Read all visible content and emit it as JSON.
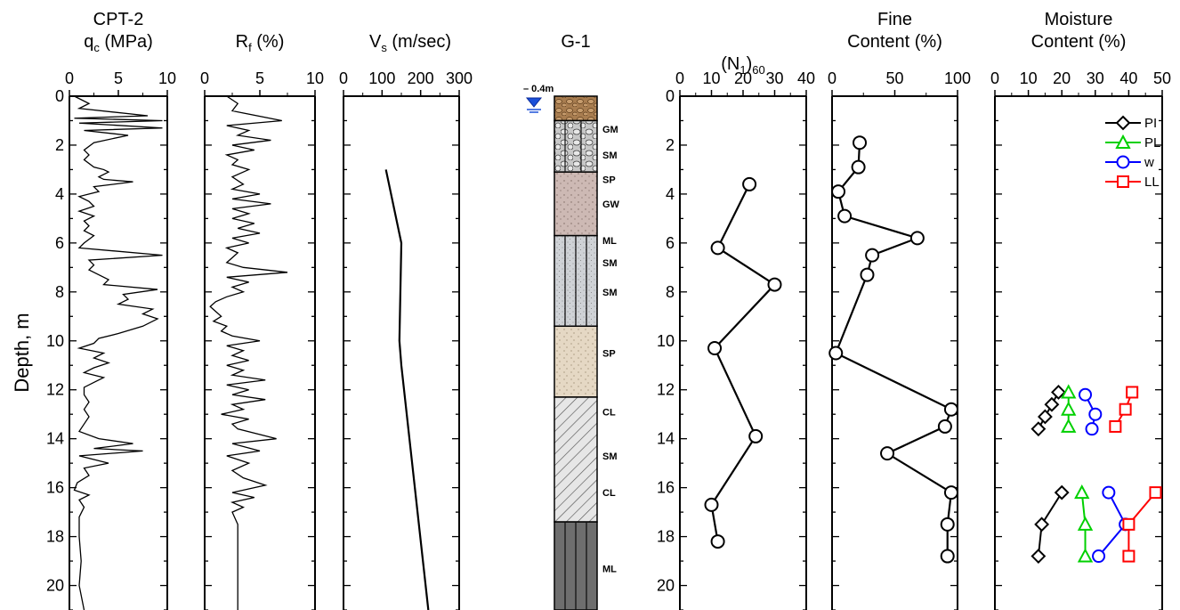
{
  "chart_data": {
    "type": "line",
    "y_axis": {
      "label": "Depth, m",
      "range": [
        0,
        21
      ],
      "ticks": [
        0,
        2,
        4,
        6,
        8,
        10,
        12,
        14,
        16,
        18,
        20
      ],
      "inverted": true
    },
    "panels": [
      {
        "id": "qc",
        "title_lines": [
          "CPT-2",
          "q_c (MPa)"
        ],
        "xlim": [
          0,
          10
        ],
        "xticks": [
          0,
          5,
          10
        ],
        "series": [
          {
            "values_desc": "CPT tip resistance",
            "x": [
              0.5,
              2.0,
              1.0,
              8.0,
              0.5,
              9.5,
              1.0,
              9.5,
              1.5,
              6.0,
              2.5,
              1.5,
              2.0,
              1.5,
              2.5,
              3.5,
              4.0,
              3.0,
              3.5,
              6.5,
              2.5,
              3.0,
              1.0,
              2.0,
              2.5,
              1.0,
              2.5,
              1.5,
              2.0,
              1.5,
              2.5,
              1.5,
              1.0,
              9.5,
              2.0,
              2.5,
              2.0,
              3.0,
              4.0,
              3.5,
              9.0,
              5.5,
              6.0,
              5.0,
              8.5,
              7.5,
              9.0,
              7.5,
              5.0,
              3.0,
              2.5,
              1.0,
              3.5,
              2.5,
              4.0,
              2.5,
              1.5,
              3.5,
              2.5,
              1.5,
              1.5,
              2.0,
              1.5,
              2.0,
              1.5,
              1.0,
              3.0,
              6.5,
              2.5,
              7.5,
              1.0,
              4.0,
              1.5,
              2.0,
              0.8,
              0.5,
              2.0,
              1.0,
              1.5,
              1.0,
              1.0,
              1.2,
              1.0,
              1.5
            ],
            "depth": [
              0,
              0.3,
              0.5,
              0.8,
              0.9,
              1.0,
              1.1,
              1.3,
              1.4,
              1.6,
              1.9,
              2.2,
              2.4,
              2.6,
              2.9,
              3.0,
              3.1,
              3.3,
              3.4,
              3.5,
              3.7,
              3.9,
              4.1,
              4.3,
              4.5,
              4.7,
              4.9,
              5.1,
              5.3,
              5.5,
              5.7,
              6.0,
              6.2,
              6.5,
              6.7,
              6.9,
              7.1,
              7.3,
              7.5,
              7.7,
              7.9,
              8.1,
              8.3,
              8.5,
              8.7,
              8.9,
              9.1,
              9.4,
              9.7,
              9.9,
              10.1,
              10.3,
              10.5,
              10.7,
              10.9,
              11.1,
              11.3,
              11.5,
              11.7,
              11.9,
              12.2,
              12.5,
              12.8,
              13.1,
              13.4,
              13.7,
              14.0,
              14.2,
              14.4,
              14.5,
              14.7,
              15.0,
              15.2,
              15.5,
              15.8,
              16.1,
              16.3,
              16.5,
              16.8,
              17.2,
              18.0,
              19.0,
              20.0,
              21.0
            ]
          }
        ]
      },
      {
        "id": "rf",
        "title_lines": [
          "R_f (%)"
        ],
        "xlim": [
          0,
          10
        ],
        "xticks": [
          0,
          5,
          10
        ],
        "series": [
          {
            "values_desc": "friction ratio",
            "x": [
              2.0,
              3.0,
              2.5,
              7.0,
              2.0,
              4.0,
              3.0,
              6.0,
              2.5,
              4.5,
              2.0,
              3.0,
              2.5,
              4.0,
              2.5,
              3.5,
              2.5,
              5.0,
              2.5,
              6.0,
              2.5,
              4.0,
              2.5,
              4.5,
              3.0,
              5.0,
              2.5,
              4.0,
              2.0,
              3.0,
              2.5,
              2.0,
              3.5,
              7.5,
              2.0,
              4.0,
              2.5,
              3.5,
              2.0,
              1.0,
              0.5,
              1.0,
              1.5,
              0.8,
              2.0,
              1.5,
              2.5,
              5.0,
              2.0,
              3.5,
              2.5,
              4.0,
              2.0,
              3.5,
              2.5,
              5.5,
              2.0,
              4.0,
              2.5,
              5.5,
              2.5,
              3.5,
              1.5,
              4.0,
              2.5,
              3.0,
              6.5,
              2.5,
              5.0,
              2.0,
              4.0,
              2.5,
              3.5,
              5.5,
              2.5,
              4.5,
              2.5,
              3.5,
              2.5,
              3.0,
              3.0,
              3.0,
              3.0,
              3.0
            ],
            "depth": [
              0,
              0.3,
              0.6,
              1.0,
              1.2,
              1.4,
              1.6,
              1.8,
              2.0,
              2.2,
              2.4,
              2.6,
              2.8,
              3.0,
              3.3,
              3.6,
              3.8,
              4.0,
              4.2,
              4.4,
              4.6,
              4.8,
              5.0,
              5.2,
              5.4,
              5.6,
              5.8,
              6.0,
              6.2,
              6.4,
              6.6,
              6.8,
              7.0,
              7.2,
              7.4,
              7.6,
              7.8,
              8.0,
              8.2,
              8.4,
              8.6,
              8.8,
              9.0,
              9.2,
              9.4,
              9.6,
              9.8,
              10.0,
              10.2,
              10.4,
              10.6,
              10.8,
              11.0,
              11.2,
              11.4,
              11.6,
              11.8,
              12.0,
              12.2,
              12.4,
              12.6,
              12.8,
              13.0,
              13.2,
              13.4,
              13.6,
              14.0,
              14.2,
              14.5,
              14.7,
              15.0,
              15.3,
              15.6,
              15.9,
              16.2,
              16.4,
              16.6,
              16.8,
              17.0,
              17.5,
              18.0,
              19.0,
              20.0,
              21.0
            ]
          }
        ]
      },
      {
        "id": "vs",
        "title_lines": [
          "V_s (m/sec)"
        ],
        "xlim": [
          0,
          300
        ],
        "xticks": [
          0,
          100,
          200,
          300
        ],
        "series": [
          {
            "values_desc": "shear wave velocity",
            "x": [
              110,
              150,
              145,
              150,
              220
            ],
            "depth": [
              3.0,
              6.0,
              10.0,
              11.0,
              21.0
            ]
          }
        ]
      },
      {
        "id": "n160",
        "title_lines": [
          "(N_1)_60"
        ],
        "xlim": [
          0,
          40
        ],
        "xticks": [
          0,
          10,
          20,
          30,
          40
        ],
        "series": [
          {
            "values_desc": "corrected SPT",
            "x": [
              22,
              12,
              30,
              11,
              24,
              10,
              12
            ],
            "depth": [
              3.6,
              6.2,
              7.7,
              10.3,
              13.9,
              16.7,
              18.2
            ]
          }
        ]
      },
      {
        "id": "fc",
        "title_lines": [
          "Fine",
          "Content (%)"
        ],
        "xlim": [
          0,
          100
        ],
        "xticks": [
          0,
          50,
          100
        ],
        "series": [
          {
            "values_desc": "fine content",
            "x": [
              22,
              21,
              5,
              10,
              68,
              32,
              28,
              3,
              95,
              90,
              44,
              95,
              92,
              92
            ],
            "depth": [
              1.9,
              2.9,
              3.9,
              4.9,
              5.8,
              6.5,
              7.3,
              10.5,
              12.8,
              13.5,
              14.6,
              16.2,
              17.5,
              18.8
            ]
          }
        ]
      },
      {
        "id": "mc",
        "title_lines": [
          "Moisture",
          "Content (%)"
        ],
        "xlim": [
          0,
          50
        ],
        "xticks": [
          0,
          10,
          20,
          30,
          40,
          50
        ],
        "series": [
          {
            "name": "PI",
            "color": "#000000",
            "marker": "diamond",
            "x": [
              19,
              17,
              15,
              13
            ],
            "depth": [
              12.1,
              12.6,
              13.1,
              13.6
            ],
            "x2": [
              20,
              14,
              13
            ],
            "depth2": [
              16.2,
              17.5,
              18.8
            ]
          },
          {
            "name": "PL",
            "color": "#00d000",
            "marker": "triangle",
            "x": [
              22,
              22,
              22
            ],
            "depth": [
              12.1,
              12.8,
              13.5
            ],
            "x2": [
              26,
              27,
              27
            ],
            "depth2": [
              16.2,
              17.5,
              18.8
            ]
          },
          {
            "name": "w",
            "color": "#0000ff",
            "marker": "circle",
            "x": [
              27,
              30,
              29
            ],
            "depth": [
              12.2,
              13.0,
              13.6
            ],
            "x2": [
              34,
              39,
              31
            ],
            "depth2": [
              16.2,
              17.5,
              18.8
            ]
          },
          {
            "name": "LL",
            "color": "#ff0000",
            "marker": "square",
            "x": [
              41,
              39,
              36
            ],
            "depth": [
              12.1,
              12.8,
              13.5
            ],
            "x2": [
              48,
              40,
              40
            ],
            "depth2": [
              16.2,
              17.5,
              18.8
            ]
          }
        ]
      }
    ],
    "borehole": {
      "title": "G-1",
      "water_table_label": "0.4m",
      "layers": [
        {
          "top": 0,
          "bottom": 1.0,
          "fill": "#a87d50"
        },
        {
          "top": 1.0,
          "bottom": 3.1,
          "fill": "#c8c8c8"
        },
        {
          "top": 3.1,
          "bottom": 5.7,
          "fill": "#c8b0ab"
        },
        {
          "top": 5.7,
          "bottom": 9.4,
          "fill": "#cfd2d6"
        },
        {
          "top": 9.4,
          "bottom": 12.3,
          "fill": "#e5d8c4"
        },
        {
          "top": 12.3,
          "bottom": 17.4,
          "fill": "#e6e6e6"
        },
        {
          "top": 17.4,
          "bottom": 21.0,
          "fill": "#6e6e6e"
        }
      ],
      "labels": [
        {
          "text": "GM",
          "depth": 1.35
        },
        {
          "text": "SM",
          "depth": 2.4
        },
        {
          "text": "SP",
          "depth": 3.4
        },
        {
          "text": "GW",
          "depth": 4.4
        },
        {
          "text": "ML",
          "depth": 5.9
        },
        {
          "text": "SM",
          "depth": 6.8
        },
        {
          "text": "SM",
          "depth": 8.0
        },
        {
          "text": "SP",
          "depth": 10.5
        },
        {
          "text": "CL",
          "depth": 12.9
        },
        {
          "text": "SM",
          "depth": 14.7
        },
        {
          "text": "CL",
          "depth": 16.2
        },
        {
          "text": "ML",
          "depth": 19.3
        }
      ]
    }
  }
}
